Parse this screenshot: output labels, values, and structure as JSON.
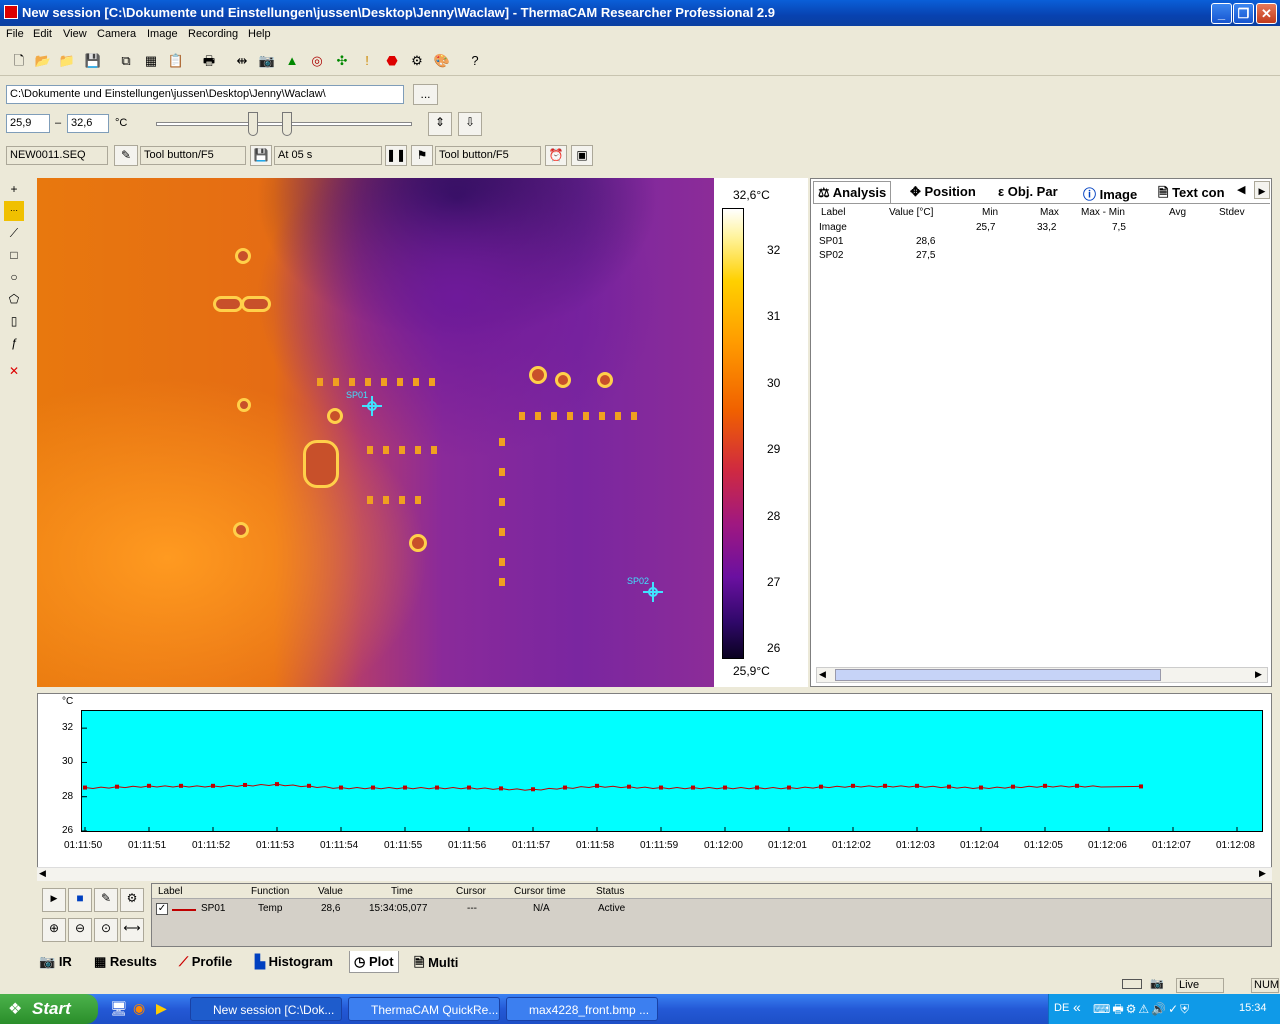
{
  "window": {
    "title": "New session [C:\\Dokumente und Einstellungen\\jussen\\Desktop\\Jenny\\Waclaw] - ThermaCAM Researcher Professional 2.9",
    "minimize": "_",
    "maximize": "❐",
    "close": "✕"
  },
  "menu": [
    "File",
    "Edit",
    "View",
    "Camera",
    "Image",
    "Recording",
    "Help"
  ],
  "path": {
    "value": "C:\\Dokumente und Einstellungen\\jussen\\Desktop\\Jenny\\Waclaw\\",
    "browse": "..."
  },
  "range": {
    "min": "25,9",
    "sep": "–",
    "max": "32,6",
    "unit": "°C"
  },
  "seq": {
    "file": "NEW0011.SEQ",
    "tool1": "Tool button/F5",
    "at": "At 05 s",
    "tool2": "Tool button/F5"
  },
  "scale": {
    "top": "32,6°C",
    "bottom": "25,9°C",
    "ticks": [
      "32",
      "31",
      "30",
      "29",
      "28",
      "27",
      "26"
    ]
  },
  "spots": [
    {
      "label": "SP01"
    },
    {
      "label": "SP02"
    }
  ],
  "analysis": {
    "tabs": [
      "Analysis",
      "Position",
      "Obj. Par",
      "Image",
      "Text con"
    ],
    "columns": [
      "Label",
      "Value [°C]",
      "Min",
      "Max",
      "Max - Min",
      "Avg",
      "Stdev"
    ],
    "rows": [
      {
        "label": "Image",
        "value": "",
        "min": "25,7",
        "max": "33,2",
        "maxmin": "7,5"
      },
      {
        "label": "SP01",
        "value": "28,6",
        "min": "",
        "max": "",
        "maxmin": ""
      },
      {
        "label": "SP02",
        "value": "27,5",
        "min": "",
        "max": "",
        "maxmin": ""
      }
    ]
  },
  "plot": {
    "unit": "°C",
    "yticks": [
      "32",
      "30",
      "28",
      "26"
    ],
    "xticks": [
      "01:11:50",
      "01:11:51",
      "01:11:52",
      "01:11:53",
      "01:11:54",
      "01:11:55",
      "01:11:56",
      "01:11:57",
      "01:11:58",
      "01:11:59",
      "01:12:00",
      "01:12:01",
      "01:12:02",
      "01:12:03",
      "01:12:04",
      "01:12:05",
      "01:12:06",
      "01:12:07",
      "01:12:08"
    ],
    "background": "#00ffff",
    "series_color": "#c00000"
  },
  "chart_data": {
    "type": "line",
    "xlabel": "",
    "ylabel": "°C",
    "ylim": [
      26,
      33
    ],
    "series": [
      {
        "name": "SP01",
        "x": [
          "01:11:50",
          "01:11:51",
          "01:11:52",
          "01:11:53",
          "01:11:54",
          "01:11:55",
          "01:11:56",
          "01:11:57",
          "01:11:58",
          "01:11:59",
          "01:12:00",
          "01:12:01",
          "01:12:02",
          "01:12:03",
          "01:12:04",
          "01:12:05",
          "01:12:06"
        ],
        "values": [
          28.5,
          28.6,
          28.6,
          28.7,
          28.5,
          28.5,
          28.5,
          28.4,
          28.6,
          28.5,
          28.5,
          28.5,
          28.6,
          28.6,
          28.5,
          28.6,
          28.6
        ]
      }
    ]
  },
  "legend": {
    "columns": [
      "Label",
      "Function",
      "Value",
      "Time",
      "Cursor",
      "Cursor time",
      "Status"
    ],
    "row": {
      "label": "SP01",
      "function": "Temp",
      "value": "28,6",
      "time": "15:34:05,077",
      "cursor": "---",
      "cursor_time": "N/A",
      "status": "Active"
    }
  },
  "bottom_tabs": [
    "IR",
    "Results",
    "Profile",
    "Histogram",
    "Plot",
    "Multi"
  ],
  "status": {
    "live": "Live",
    "num": "NUM"
  },
  "taskbar": {
    "start": "Start",
    "tasks": [
      "New session [C:\\Dok...",
      "ThermaCAM QuickRe...",
      "max4228_front.bmp ..."
    ],
    "lang": "DE",
    "clock": "15:34"
  }
}
